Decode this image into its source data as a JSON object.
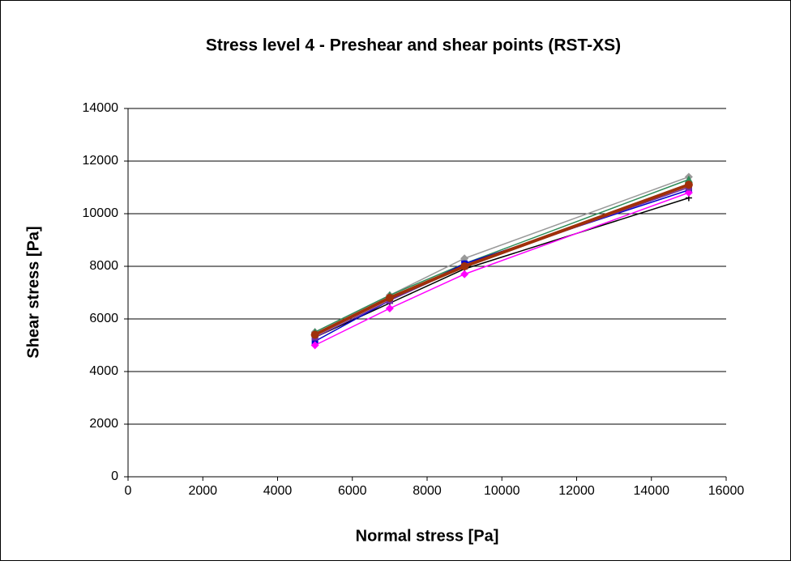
{
  "chart_data": {
    "type": "scatter-line",
    "title": "Stress level 4 - Preshear and shear points (RST-XS)",
    "x_label": "Normal stress [Pa]",
    "y_label": "Shear stress [Pa]",
    "x": [
      5000,
      7000,
      9000,
      15000
    ],
    "xlim": [
      0,
      16000
    ],
    "xticks": [
      0,
      2000,
      4000,
      6000,
      8000,
      10000,
      12000,
      14000,
      16000
    ],
    "ylim": [
      0,
      14000
    ],
    "yticks": [
      0,
      2000,
      4000,
      6000,
      8000,
      10000,
      12000,
      14000
    ],
    "grid": true,
    "series": [
      {
        "color": "#999999",
        "marker": "diamond",
        "values": [
          5500,
          6900,
          8300,
          11400
        ]
      },
      {
        "color": "#2e8b57",
        "marker": "triangle",
        "values": [
          5500,
          6900,
          8100,
          11300
        ]
      },
      {
        "color": "#000000",
        "marker": "plus",
        "values": [
          5300,
          6600,
          7900,
          10600
        ]
      },
      {
        "color": "#0000cc",
        "marker": "square",
        "values": [
          5150,
          6700,
          8100,
          10900
        ]
      },
      {
        "color": "#ff00ff",
        "marker": "diamond",
        "values": [
          5000,
          6400,
          7700,
          10800
        ]
      },
      {
        "color": "#7030a0",
        "marker": "square",
        "values": [
          5300,
          6700,
          8000,
          11000
        ]
      },
      {
        "color": "#a0300a",
        "marker": "circle",
        "values": [
          5400,
          6800,
          8000,
          11100
        ]
      }
    ]
  }
}
